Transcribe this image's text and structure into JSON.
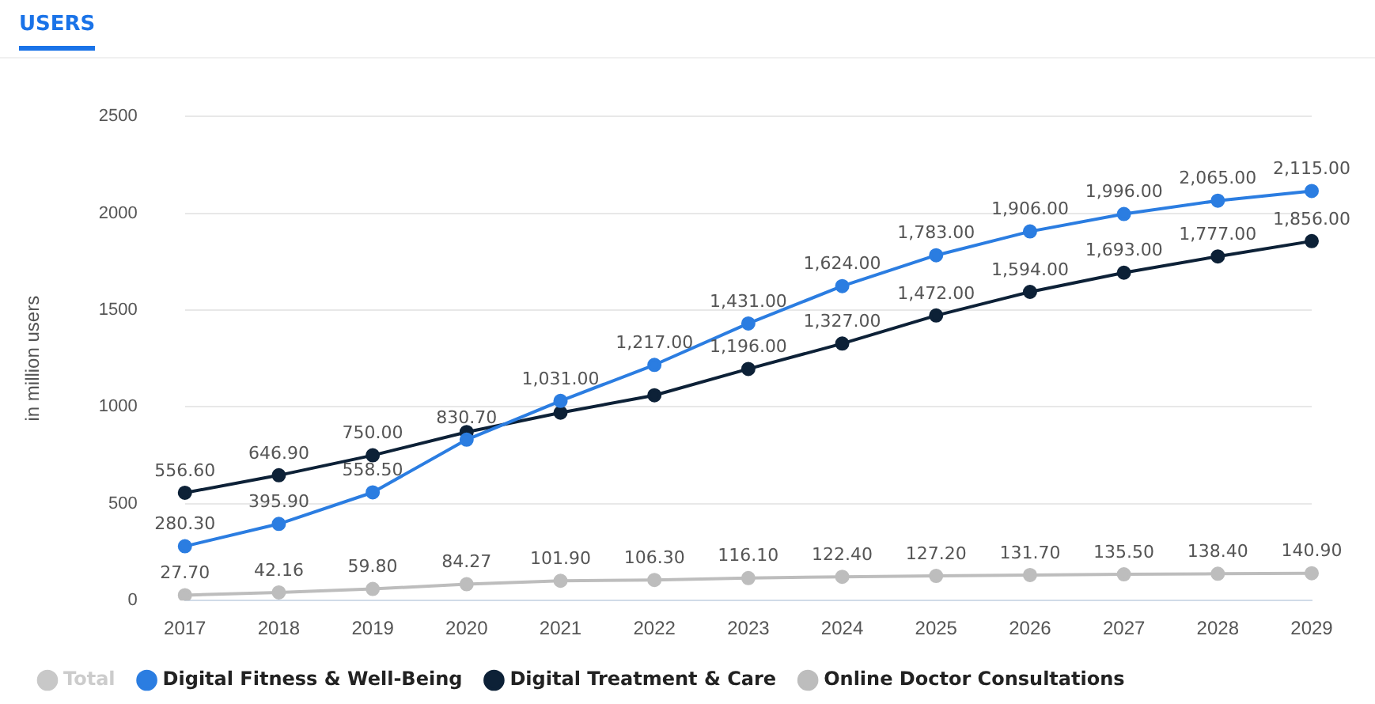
{
  "chart_data": {
    "type": "line",
    "title": "USERS",
    "ylabel": "in million users",
    "categories": [
      "2017",
      "2018",
      "2019",
      "2020",
      "2021",
      "2022",
      "2023",
      "2024",
      "2025",
      "2026",
      "2027",
      "2028",
      "2029"
    ],
    "series": [
      {
        "name": "Total",
        "color": "#c8c8c8",
        "values": [
          null,
          null,
          null,
          null,
          null,
          null,
          null,
          null,
          null,
          null,
          null,
          null,
          null
        ]
      },
      {
        "name": "Digital Fitness & Well-Being",
        "color": "#2b7de1",
        "values": [
          280.3,
          395.9,
          558.5,
          830.7,
          1031,
          1217,
          1431,
          1624,
          1783,
          1906,
          1996,
          2065,
          2115
        ],
        "value_labels": [
          "280.30",
          "395.90",
          "558.50",
          "830.70",
          "1,031.00",
          "1,217.00",
          "1,431.00",
          "1,624.00",
          "1,783.00",
          "1,906.00",
          "1,996.00",
          "2,065.00",
          "2,115.00"
        ]
      },
      {
        "name": "Digital Treatment & Care",
        "color": "#0d2137",
        "values": [
          556.6,
          646.9,
          750,
          870,
          970,
          1060,
          1196,
          1327,
          1472,
          1594,
          1693,
          1777,
          1856
        ],
        "value_labels": [
          "556.60",
          "646.90",
          "750.00",
          null,
          null,
          null,
          "1,196.00",
          "1,327.00",
          "1,472.00",
          "1,594.00",
          "1,693.00",
          "1,777.00",
          "1,856.00"
        ]
      },
      {
        "name": "Online Doctor Consultations",
        "color": "#bdbdbd",
        "values": [
          27.7,
          42.16,
          59.8,
          84.27,
          101.9,
          106.3,
          116.1,
          122.4,
          127.2,
          131.7,
          135.5,
          138.4,
          140.9
        ],
        "value_labels": [
          "27.70",
          "42.16",
          "59.80",
          "84.27",
          "101.90",
          "106.30",
          "116.10",
          "122.40",
          "127.20",
          "131.70",
          "135.50",
          "138.40",
          "140.90"
        ]
      }
    ],
    "ylim": [
      0,
      2500
    ],
    "yticks": [
      0,
      500,
      1000,
      1500,
      2000,
      2500
    ],
    "grid": "y",
    "legend": "bottom",
    "marker": "circle",
    "line_style": "solid"
  }
}
